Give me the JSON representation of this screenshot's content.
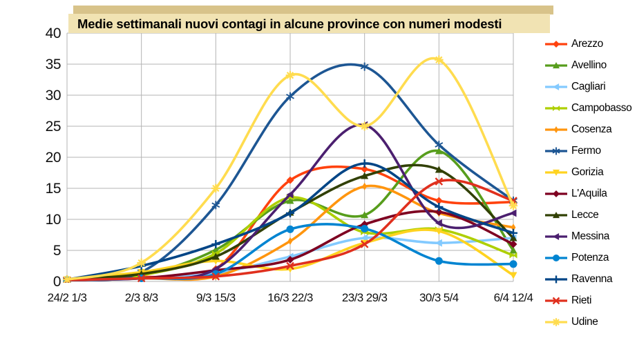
{
  "title_box": {
    "text": "Medie settimanali nuovi contagi in alcune province con numeri modesti"
  },
  "hidden_title": {
    "text": "Medie settimanali nuovi contagi in alcune province con numeri modesti"
  },
  "colors": {
    "title_box_bg": "#f1e3b3",
    "title_box_shadow": "#d8c38a",
    "grid": "#b3b3b3",
    "background": "#ffffff"
  },
  "chart_data": {
    "type": "line",
    "smooth": true,
    "grid": true,
    "legend_position": "right",
    "title": "Medie settimanali nuovi contagi in alcune province con numeri modesti",
    "xlabel": "",
    "ylabel": "",
    "ylim": [
      0,
      40
    ],
    "y_ticks": [
      0,
      5,
      10,
      15,
      20,
      25,
      30,
      35,
      40
    ],
    "categories": [
      "24/2 1/3",
      "2/3 8/3",
      "9/3 15/3",
      "16/3 22/3",
      "23/3 29/3",
      "30/3 5/4",
      "6/4 12/4"
    ],
    "series": [
      {
        "name": "Arezzo",
        "color": "#ff420e",
        "marker": "diamond",
        "values": [
          0.3,
          0.7,
          2.0,
          16.3,
          18.1,
          13.0,
          12.8
        ]
      },
      {
        "name": "Avellino",
        "color": "#579d1c",
        "marker": "triangle-up",
        "values": [
          0.3,
          1.0,
          5.1,
          13.0,
          10.7,
          21.0,
          5.0
        ]
      },
      {
        "name": "Cagliari",
        "color": "#83caff",
        "marker": "triangle-left",
        "values": [
          0.2,
          0.5,
          1.3,
          4.0,
          7.0,
          6.2,
          7.0
        ]
      },
      {
        "name": "Campobasso",
        "color": "#aecf00",
        "marker": "bowtie",
        "values": [
          0.3,
          1.0,
          4.5,
          13.5,
          7.9,
          8.4,
          4.2
        ]
      },
      {
        "name": "Cosenza",
        "color": "#ff950e",
        "marker": "narrow-diamond",
        "values": [
          0.2,
          0.5,
          0.8,
          6.5,
          15.3,
          11.0,
          8.7
        ]
      },
      {
        "name": "Fermo",
        "color": "#1d5693",
        "marker": "asterisk",
        "values": [
          0.3,
          1.5,
          12.3,
          29.8,
          34.6,
          22.0,
          13.0
        ]
      },
      {
        "name": "Gorizia",
        "color": "#ffd320",
        "marker": "triangle-down",
        "values": [
          0.3,
          1.5,
          3.3,
          2.0,
          6.2,
          8.1,
          1.0
        ]
      },
      {
        "name": "L'Aquila",
        "color": "#7e0021",
        "marker": "diamond",
        "values": [
          0.2,
          0.5,
          1.8,
          3.5,
          9.2,
          11.2,
          6.0
        ]
      },
      {
        "name": "Lecce",
        "color": "#314004",
        "marker": "triangle-up",
        "values": [
          0.3,
          1.2,
          4.0,
          11.1,
          17.0,
          18.0,
          7.0
        ]
      },
      {
        "name": "Messina",
        "color": "#4b1f6f",
        "marker": "triangle-left",
        "values": [
          0.2,
          0.5,
          2.0,
          14.0,
          25.2,
          9.4,
          11.0
        ]
      },
      {
        "name": "Potenza",
        "color": "#0084d1",
        "marker": "circle",
        "values": [
          0.2,
          0.5,
          1.2,
          8.4,
          8.5,
          3.3,
          2.8
        ]
      },
      {
        "name": "Ravenna",
        "color": "#004586",
        "marker": "plus",
        "values": [
          0.3,
          2.5,
          6.0,
          11.0,
          19.0,
          12.0,
          7.8
        ]
      },
      {
        "name": "Rieti",
        "color": "#e0301e",
        "marker": "x",
        "values": [
          0.2,
          0.5,
          0.8,
          2.5,
          6.0,
          16.1,
          13.0
        ]
      },
      {
        "name": "Udine",
        "color": "#ffdc4f",
        "marker": "star8",
        "values": [
          0.3,
          3.0,
          15.0,
          33.2,
          25.0,
          35.7,
          12.2
        ]
      }
    ]
  }
}
